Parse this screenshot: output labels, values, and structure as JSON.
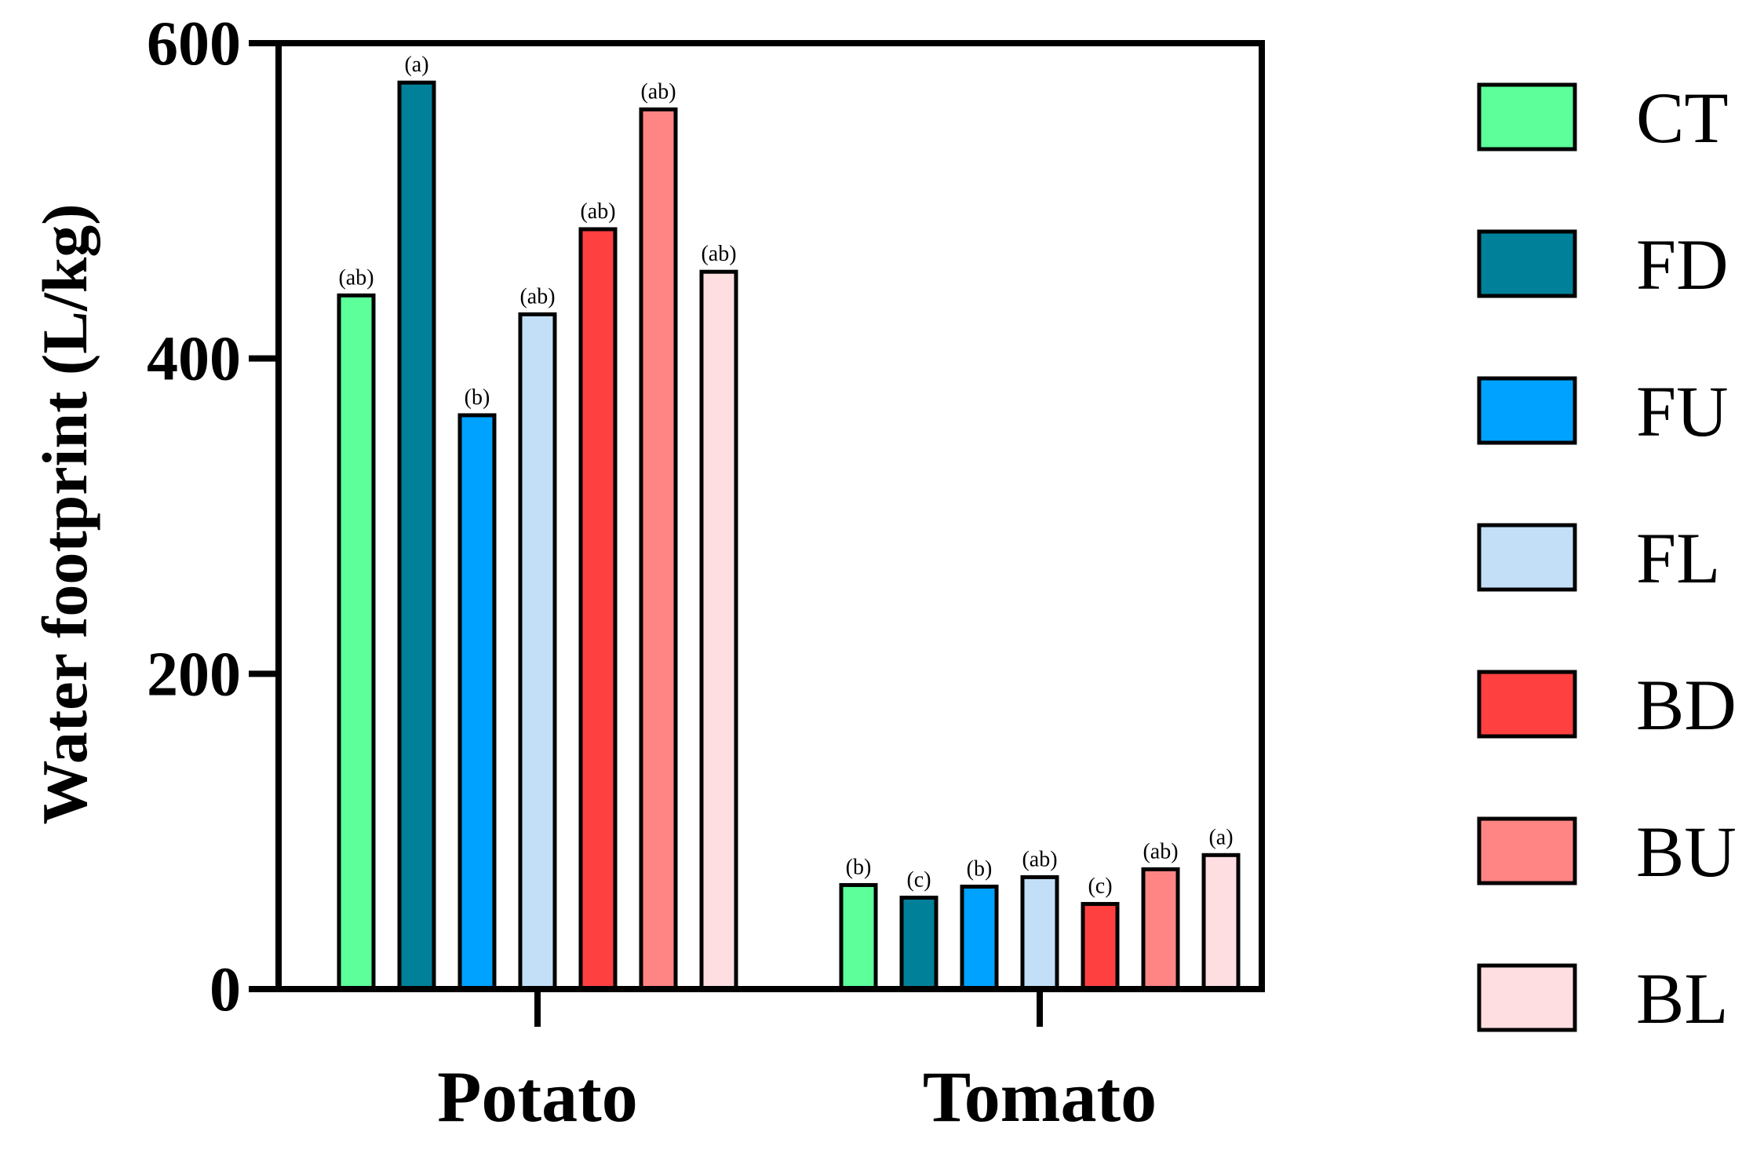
{
  "chart_data": {
    "type": "bar",
    "title": "",
    "xlabel": "",
    "ylabel": "Water footprint (L/kg)",
    "ylim": [
      0,
      600
    ],
    "yticks": [
      0,
      200,
      400,
      600
    ],
    "categories": [
      "Potato",
      "Tomato"
    ],
    "series": [
      {
        "name": "CT",
        "color": "#5CFF9A",
        "values": [
          440,
          66
        ],
        "labels": [
          "(ab)",
          "(b)"
        ]
      },
      {
        "name": "FD",
        "color": "#008099",
        "values": [
          575,
          58
        ],
        "labels": [
          "(a)",
          "(c)"
        ]
      },
      {
        "name": "FU",
        "color": "#00A2FF",
        "values": [
          364,
          65
        ],
        "labels": [
          "(b)",
          "(b)"
        ]
      },
      {
        "name": "FL",
        "color": "#C2DFF7",
        "values": [
          428,
          71
        ],
        "labels": [
          "(ab)",
          "(ab)"
        ]
      },
      {
        "name": "BD",
        "color": "#FF4040",
        "values": [
          482,
          54
        ],
        "labels": [
          "(ab)",
          "(c)"
        ]
      },
      {
        "name": "BU",
        "color": "#FF8585",
        "values": [
          558,
          76
        ],
        "labels": [
          "(ab)",
          "(ab)"
        ]
      },
      {
        "name": "BL",
        "color": "#FFDEE2",
        "values": [
          455,
          85
        ],
        "labels": [
          "(ab)",
          "(a)"
        ]
      }
    ],
    "grid": false,
    "legend": "right"
  }
}
